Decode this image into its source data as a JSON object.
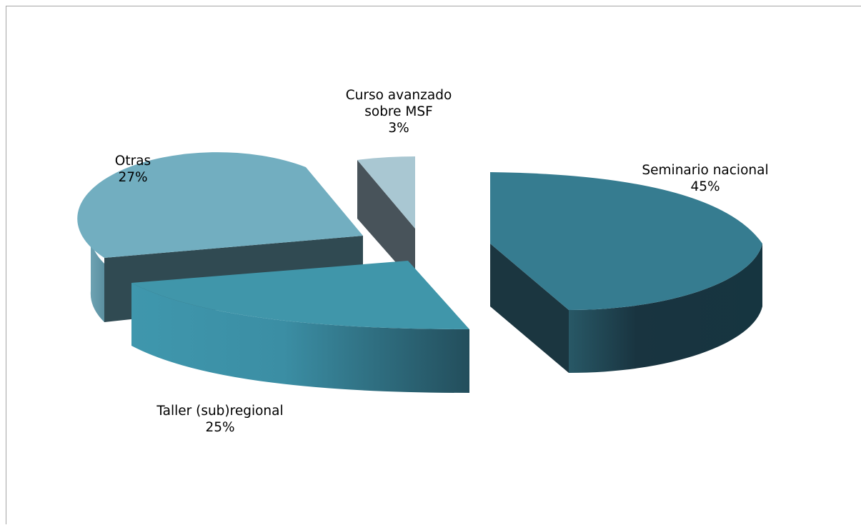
{
  "chart_data": {
    "type": "pie",
    "style": "3d-exploded",
    "title": "",
    "legend": "none",
    "slices": [
      {
        "name": "Seminario nacional",
        "value": 45,
        "label_lines": [
          "Seminario nacional"
        ],
        "percent_label": "45%",
        "color": "#367c90",
        "side_color": "#193440"
      },
      {
        "name": "Taller (sub)regional",
        "value": 25,
        "label_lines": [
          "Taller (sub)regional"
        ],
        "percent_label": "25%",
        "color": "#4096aa",
        "side_color": "#3a8ea3"
      },
      {
        "name": "Otras",
        "value": 27,
        "label_lines": [
          "Otras"
        ],
        "percent_label": "27%",
        "color": "#72aec0",
        "side_color": "#304a52"
      },
      {
        "name": "Curso avanzado sobre MSF",
        "value": 3,
        "label_lines": [
          "Curso avanzado",
          "sobre MSF"
        ],
        "percent_label": "3%",
        "color": "#a9c7d2",
        "side_color": "#48535a"
      }
    ]
  }
}
